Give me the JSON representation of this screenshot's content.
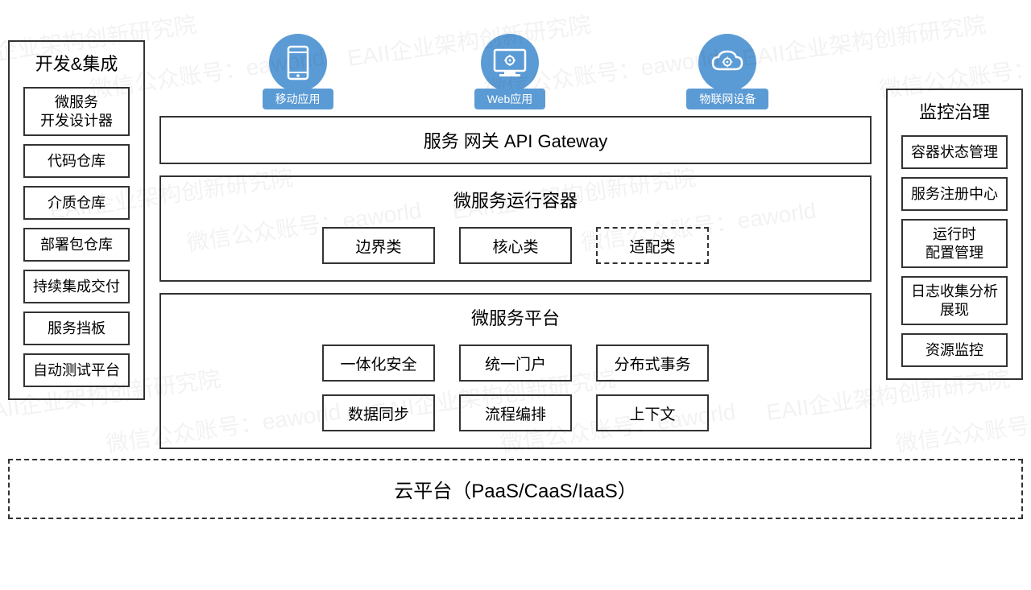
{
  "watermarks": {
    "text1": "EAII企业架构创新研究院",
    "text2": "微信公众账号：eaworld"
  },
  "leftColumn": {
    "title": "开发&集成",
    "items": [
      "微服务\n开发设计器",
      "代码仓库",
      "介质仓库",
      "部署包仓库",
      "持续集成交付",
      "服务挡板",
      "自动测试平台"
    ]
  },
  "rightColumn": {
    "title": "监控治理",
    "items": [
      "容器状态管理",
      "服务注册中心",
      "运行时\n配置管理",
      "日志收集分析展现",
      "资源监控"
    ]
  },
  "icons": [
    {
      "name": "mobile-icon",
      "label": "移动应用"
    },
    {
      "name": "web-icon",
      "label": "Web应用"
    },
    {
      "name": "iot-icon",
      "label": "物联网设备"
    }
  ],
  "gateway": {
    "title": "服务 网关 API Gateway"
  },
  "runtime": {
    "title": "微服务运行容器",
    "items": [
      {
        "label": "边界类",
        "dashed": false
      },
      {
        "label": "核心类",
        "dashed": false
      },
      {
        "label": "适配类",
        "dashed": true
      }
    ]
  },
  "platform": {
    "title": "微服务平台",
    "row1": [
      "一体化安全",
      "统一门户",
      "分布式事务"
    ],
    "row2": [
      "数据同步",
      "流程编排",
      "上下文"
    ]
  },
  "cloud": {
    "title": "云平台（PaaS/CaaS/IaaS）"
  },
  "style": {
    "accent": "#5b9bd5",
    "border": "#333333",
    "background": "#ffffff",
    "fontsize_title": 22,
    "fontsize_item": 18,
    "fontsize_cloud": 24,
    "fontsize_icon_label": 14,
    "border_width": 2,
    "dashed_border_width": 2.5
  }
}
